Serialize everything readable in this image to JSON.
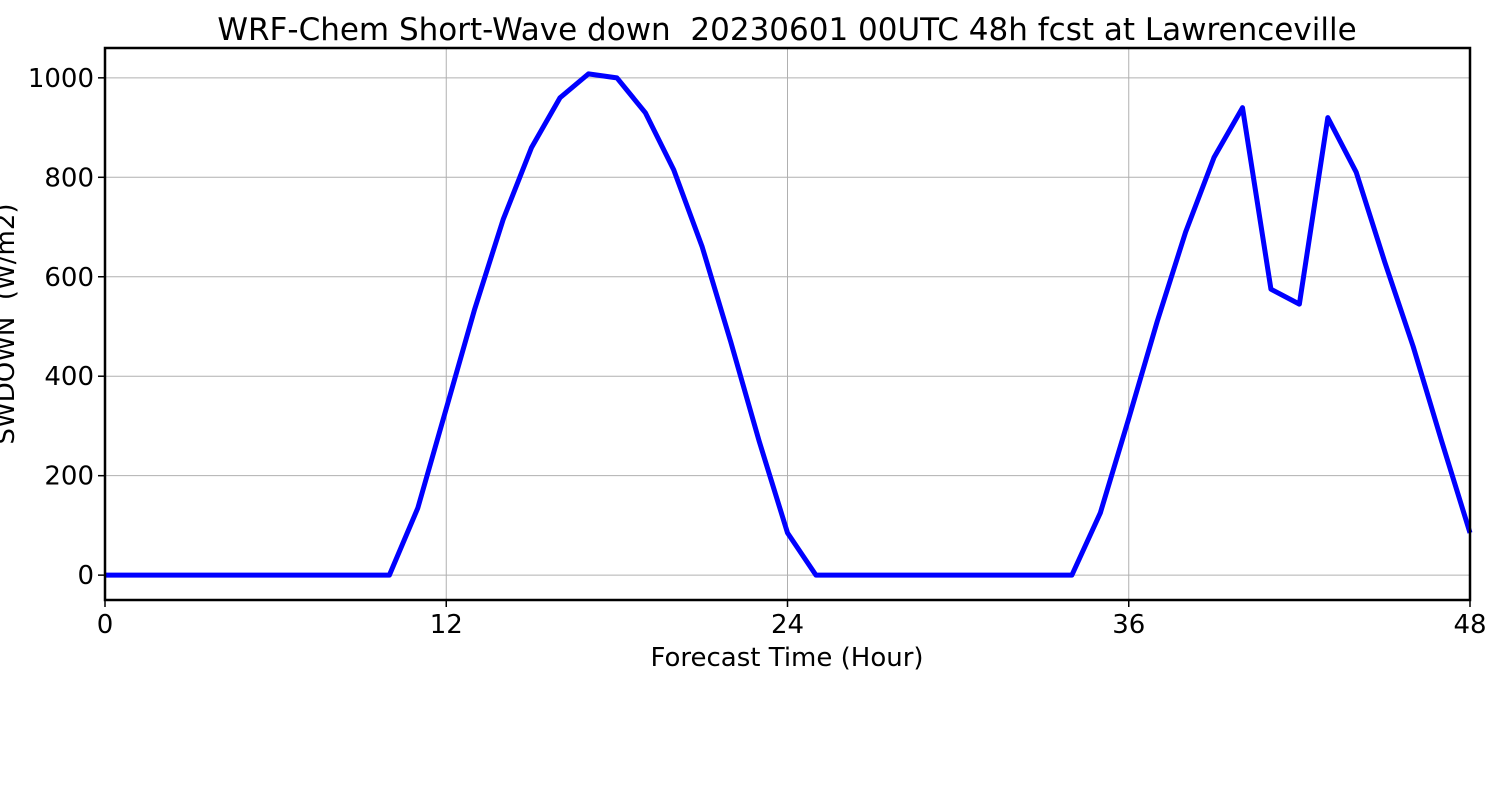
{
  "chart_data": {
    "type": "line",
    "title": "WRF-Chem Short-Wave down  20230601 00UTC 48h fcst at Lawrenceville",
    "xlabel": "Forecast Time (Hour)",
    "ylabel": "SWDOWN  (W/m2)",
    "xlim": [
      0,
      48
    ],
    "ylim": [
      -50,
      1060
    ],
    "xticks": [
      0,
      12,
      24,
      36,
      48
    ],
    "yticks": [
      0,
      200,
      400,
      600,
      800,
      1000
    ],
    "grid": true,
    "series": [
      {
        "color": "#0000ff",
        "x": [
          0,
          1,
          2,
          3,
          4,
          5,
          6,
          7,
          8,
          9,
          10,
          11,
          12,
          13,
          14,
          15,
          16,
          17,
          18,
          19,
          20,
          21,
          22,
          23,
          24,
          25,
          26,
          27,
          28,
          29,
          30,
          31,
          32,
          33,
          34,
          35,
          36,
          37,
          38,
          39,
          40,
          41,
          42,
          43,
          44,
          45,
          46,
          47,
          48
        ],
        "values": [
          0,
          0,
          0,
          0,
          0,
          0,
          0,
          0,
          0,
          0,
          0,
          135,
          335,
          535,
          715,
          860,
          960,
          1008,
          1000,
          930,
          815,
          660,
          470,
          270,
          85,
          0,
          0,
          0,
          0,
          0,
          0,
          0,
          0,
          0,
          0,
          125,
          315,
          510,
          690,
          840,
          940,
          575,
          545,
          920,
          810,
          630,
          460,
          270,
          85
        ]
      }
    ]
  }
}
